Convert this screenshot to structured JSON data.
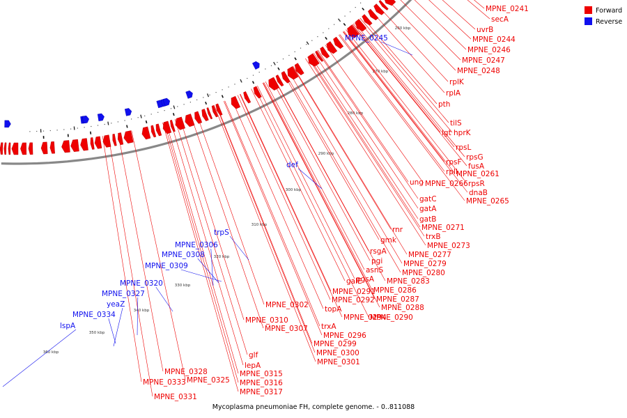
{
  "caption": "Mycoplasma pneumoniae FH, complete genome. - 0..811088",
  "colors": {
    "forward": "#ee0000",
    "reverse": "#1010ee",
    "backbone": "#888888"
  },
  "legend": [
    {
      "name": "Forward",
      "color": "#ee0000"
    },
    {
      "name": "Reverse",
      "color": "#1010ee"
    }
  ],
  "ticks": [
    "260 kbp",
    "270 kbp",
    "280 kbp",
    "290 kbp",
    "300 kbp",
    "310 kbp",
    "320 kbp",
    "330 kbp",
    "340 kbp",
    "350 kbp",
    "360 kbp"
  ],
  "forward_labels": [
    "MPNE_0241",
    "secA",
    "uvrB",
    "MPNE_0244",
    "MPNE_0246",
    "MPNE_0247",
    "MPNE_0248",
    "rplK",
    "rplA",
    "pth",
    "tilS",
    "lgt",
    "hprK",
    "rpsL",
    "rpsG",
    "fusA",
    "rpsF",
    "rplI",
    "MPNE_0261",
    "ung",
    "MPNE_0266",
    "rpsR",
    "dnaB",
    "MPNE_0265",
    "gatC",
    "gatA",
    "gatB",
    "MPNE_0271",
    "rnr",
    "trxB",
    "gmk",
    "MPNE_0273",
    "rsgA",
    "MPNE_0277",
    "pgi",
    "MPNE_0279",
    "asnS",
    "MPNE_0280",
    "pgsA",
    "MPNE_0283",
    "galE",
    "MPNE_0286",
    "MPNE_0291",
    "MPNE_0287",
    "MPNE_0292",
    "MPNE_0288",
    "topA",
    "MPNE_0294",
    "MPNE_0290",
    "MPNE_0302",
    "MPNE_0310",
    "trxA",
    "MPNE_0307",
    "MPNE_0296",
    "MPNE_0299",
    "MPNE_0300",
    "MPNE_0301",
    "glf",
    "lepA",
    "MPNE_0315",
    "MPNE_0316",
    "MPNE_0317",
    "MPNE_0328",
    "MPNE_0333",
    "MPNE_0325",
    "MPNE_0331"
  ],
  "reverse_labels": [
    "MPNE_0245",
    "def",
    "trpS",
    "MPNE_0306",
    "MPNE_0308",
    "MPNE_0309",
    "MPNE_0320",
    "MPNE_0327",
    "yeaZ",
    "MPNE_0334",
    "lspA"
  ]
}
